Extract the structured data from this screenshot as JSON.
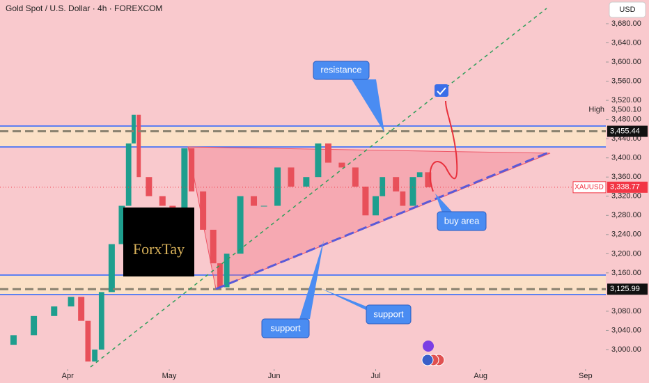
{
  "chart_data": {
    "type": "candlestick",
    "title": "Gold Spot / U.S. Dollar · 4h · FOREXCOM",
    "currency": "USD",
    "x": [
      0,
      4,
      10,
      16,
      21,
      24,
      26,
      28,
      30,
      33,
      36,
      38,
      39.5,
      41,
      44,
      48,
      51,
      54.5,
      56.6,
      60,
      63,
      65,
      67,
      71,
      75,
      78,
      82,
      86,
      90.5,
      94,
      97,
      101,
      105,
      108,
      111,
      113,
      117,
      119,
      122,
      124,
      126.5
    ],
    "series": [
      {
        "name": "XAUUSD",
        "up_color": "#1e9e8e",
        "down_color": "#e8505a",
        "last_label_color": "#f23645",
        "values": [
          3010,
          3030,
          3070,
          3090,
          3110,
          3060,
          2975,
          3000,
          3120,
          3220,
          3300,
          3430,
          3490,
          3360,
          3320,
          3300,
          3250,
          3420,
          3330,
          3250,
          3180,
          3130,
          3200,
          3320,
          3300,
          3300,
          3380,
          3340,
          3360,
          3430,
          3390,
          3380,
          3340,
          3280,
          3320,
          3360,
          3330,
          3300,
          3360,
          3370,
          3338.77
        ],
        "last_value_label": "3,338.77"
      }
    ],
    "xlim": [
      0,
      179
    ],
    "xticks": [
      {
        "value": 20,
        "label": "Apr"
      },
      {
        "value": 50,
        "label": "May"
      },
      {
        "value": 81,
        "label": "Jun"
      },
      {
        "value": 111,
        "label": "Jul"
      },
      {
        "value": 142,
        "label": "Aug"
      },
      {
        "value": 173,
        "label": "Sep"
      }
    ],
    "ylim": [
      2959.3,
      3729.4
    ],
    "yticks": [
      {
        "value": 3680,
        "label": "3,680.00"
      },
      {
        "value": 3640,
        "label": "3,640.00"
      },
      {
        "value": 3600,
        "label": "3,600.00"
      },
      {
        "value": 3560,
        "label": "3,560.00"
      },
      {
        "value": 3520,
        "label": "3,520.00"
      },
      {
        "value": 3480,
        "label": "3,480.00"
      },
      {
        "value": 3440,
        "label": "3,440.00"
      },
      {
        "value": 3400,
        "label": "3,400.00"
      },
      {
        "value": 3360,
        "label": "3,360.00"
      },
      {
        "value": 3320,
        "label": "3,320.00"
      },
      {
        "value": 3280,
        "label": "3,280.00"
      },
      {
        "value": 3240,
        "label": "3,240.00"
      },
      {
        "value": 3200,
        "label": "3,200.00"
      },
      {
        "value": 3160,
        "label": "3,160.00"
      },
      {
        "value": 3080,
        "label": "3,080.00"
      },
      {
        "value": 3040,
        "label": "3,040.00"
      },
      {
        "value": 3000,
        "label": "3,000.00"
      }
    ],
    "price_lines": [
      {
        "value": 3455.44,
        "label": "3,455.44"
      },
      {
        "value": 3125.99,
        "label": "3,125.99"
      }
    ],
    "high": {
      "label": "High",
      "value": 3500.1,
      "value_label": "3,500.10"
    },
    "annotations": [
      "resistance",
      "buy area",
      "support",
      "support"
    ],
    "logo": "ForxTay"
  }
}
